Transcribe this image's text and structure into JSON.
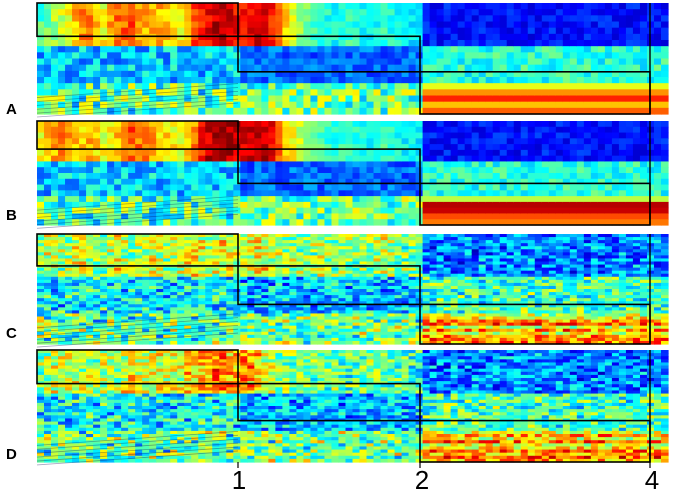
{
  "chart_data": {
    "type": "heatmap",
    "colormap": "jet",
    "grid": false,
    "panels": [
      {
        "id": "A",
        "label": "A",
        "boundaries": [
          0,
          1,
          2,
          4
        ],
        "column_profile": [
          0.45,
          0.52,
          0.6,
          0.72,
          0.75,
          0.62,
          0.78,
          0.8,
          0.72,
          0.7,
          0.68,
          0.62,
          0.78,
          0.88,
          0.95,
          0.9,
          0.85,
          0.92,
          0.88,
          0.7,
          0.55,
          0.48,
          0.42,
          0.38,
          0.45,
          0.4,
          0.36,
          0.42,
          0.38,
          0.35,
          0.33,
          0.34,
          0.32,
          0.3,
          0.33,
          0.31,
          0.3,
          0.29,
          0.31,
          0.3,
          0.28,
          0.3,
          0.29,
          0.28,
          0.3,
          0.29,
          0.3,
          0.28,
          0.29,
          0.3
        ],
        "boxes": [
          {
            "segment": 1,
            "row_band": [
              0.7,
              1.0
            ]
          },
          {
            "segment": 2,
            "row_band": [
              0.38,
              0.7
            ]
          },
          {
            "segment": 3,
            "row_band": [
              0.0,
              0.38
            ]
          }
        ]
      },
      {
        "id": "B",
        "label": "B",
        "boundaries": [
          0,
          1,
          2,
          4
        ],
        "column_profile": [
          0.62,
          0.7,
          0.75,
          0.65,
          0.72,
          0.6,
          0.68,
          0.8,
          0.75,
          0.7,
          0.65,
          0.6,
          0.72,
          0.92,
          0.98,
          0.95,
          0.9,
          0.96,
          0.92,
          0.72,
          0.6,
          0.52,
          0.46,
          0.4,
          0.45,
          0.42,
          0.38,
          0.44,
          0.4,
          0.36,
          0.35,
          0.34,
          0.33,
          0.32,
          0.34,
          0.33,
          0.31,
          0.3,
          0.32,
          0.31,
          0.3,
          0.31,
          0.3,
          0.29,
          0.31,
          0.3,
          0.31,
          0.29,
          0.3,
          0.31
        ],
        "boxes": [
          {
            "segment": 1,
            "row_band": [
              0.73,
              1.0
            ]
          },
          {
            "segment": 2,
            "row_band": [
              0.4,
              0.73
            ]
          },
          {
            "segment": 3,
            "row_band": [
              0.0,
              0.4
            ]
          }
        ]
      },
      {
        "id": "C",
        "label": "C",
        "boundaries": [
          0,
          1,
          2,
          4
        ],
        "column_profile": [
          0.5,
          0.62,
          0.45,
          0.7,
          0.55,
          0.48,
          0.72,
          0.5,
          0.58,
          0.66,
          0.52,
          0.6,
          0.74,
          0.56,
          0.62,
          0.7,
          0.58,
          0.72,
          0.64,
          0.52,
          0.56,
          0.48,
          0.6,
          0.5,
          0.58,
          0.46,
          0.54,
          0.62,
          0.48,
          0.5,
          0.42,
          0.52,
          0.38,
          0.56,
          0.44,
          0.4,
          0.58,
          0.36,
          0.6,
          0.42,
          0.5,
          0.38,
          0.62,
          0.4,
          0.52,
          0.36,
          0.6,
          0.44,
          0.38,
          0.62
        ],
        "boxes": [
          {
            "segment": 1,
            "row_band": [
              0.71,
              1.0
            ]
          },
          {
            "segment": 2,
            "row_band": [
              0.36,
              0.71
            ]
          },
          {
            "segment": 3,
            "row_band": [
              0.0,
              0.36
            ]
          }
        ]
      },
      {
        "id": "D",
        "label": "D",
        "boundaries": [
          0,
          1,
          2,
          4
        ],
        "column_profile": [
          0.48,
          0.6,
          0.55,
          0.66,
          0.52,
          0.62,
          0.5,
          0.7,
          0.58,
          0.64,
          0.6,
          0.66,
          0.72,
          0.8,
          0.86,
          0.78,
          0.84,
          0.76,
          0.6,
          0.5,
          0.46,
          0.52,
          0.44,
          0.48,
          0.42,
          0.46,
          0.5,
          0.4,
          0.44,
          0.42,
          0.38,
          0.34,
          0.3,
          0.36,
          0.32,
          0.28,
          0.34,
          0.3,
          0.38,
          0.32,
          0.3,
          0.36,
          0.34,
          0.3,
          0.32,
          0.36,
          0.3,
          0.34,
          0.3,
          0.32
        ],
        "boxes": [
          {
            "segment": 1,
            "row_band": [
              0.7,
              1.0
            ]
          },
          {
            "segment": 2,
            "row_band": [
              0.37,
              0.7
            ]
          },
          {
            "segment": 3,
            "row_band": [
              0.0,
              0.37
            ]
          }
        ]
      }
    ],
    "x_axis": {
      "tick_values": [
        1,
        2,
        4
      ],
      "tick_labels": [
        "1",
        "2",
        "4"
      ]
    }
  }
}
